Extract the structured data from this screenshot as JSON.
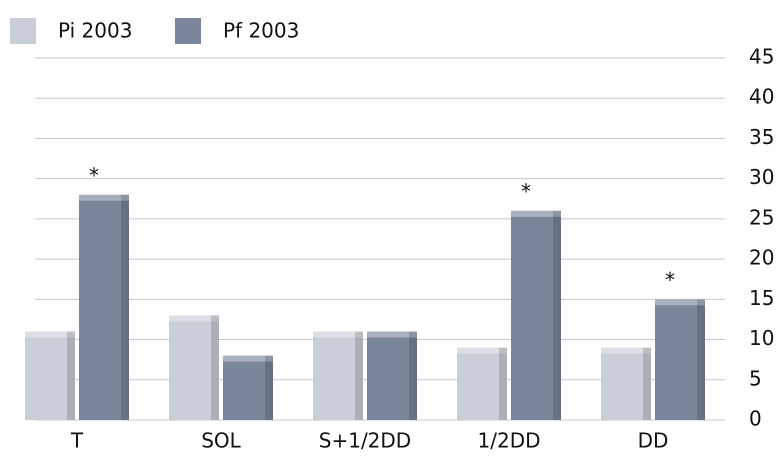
{
  "chart_data": {
    "type": "bar",
    "categories": [
      "T",
      "SOL",
      "S+1/2DD",
      "1/2DD",
      "DD"
    ],
    "series": [
      {
        "name": "Pi 2003",
        "color": "#c9ced8",
        "values": [
          11,
          13,
          11,
          9,
          9
        ]
      },
      {
        "name": "Pf 2003",
        "color": "#7b859b",
        "values": [
          28,
          8,
          11,
          26,
          15
        ],
        "markers": [
          "*",
          null,
          null,
          "*",
          "*"
        ]
      }
    ],
    "ylim": [
      0,
      45
    ],
    "yticks": [
      0,
      5,
      10,
      15,
      20,
      25,
      30,
      35,
      40,
      45
    ],
    "grid": true,
    "y_axis_side": "right"
  }
}
